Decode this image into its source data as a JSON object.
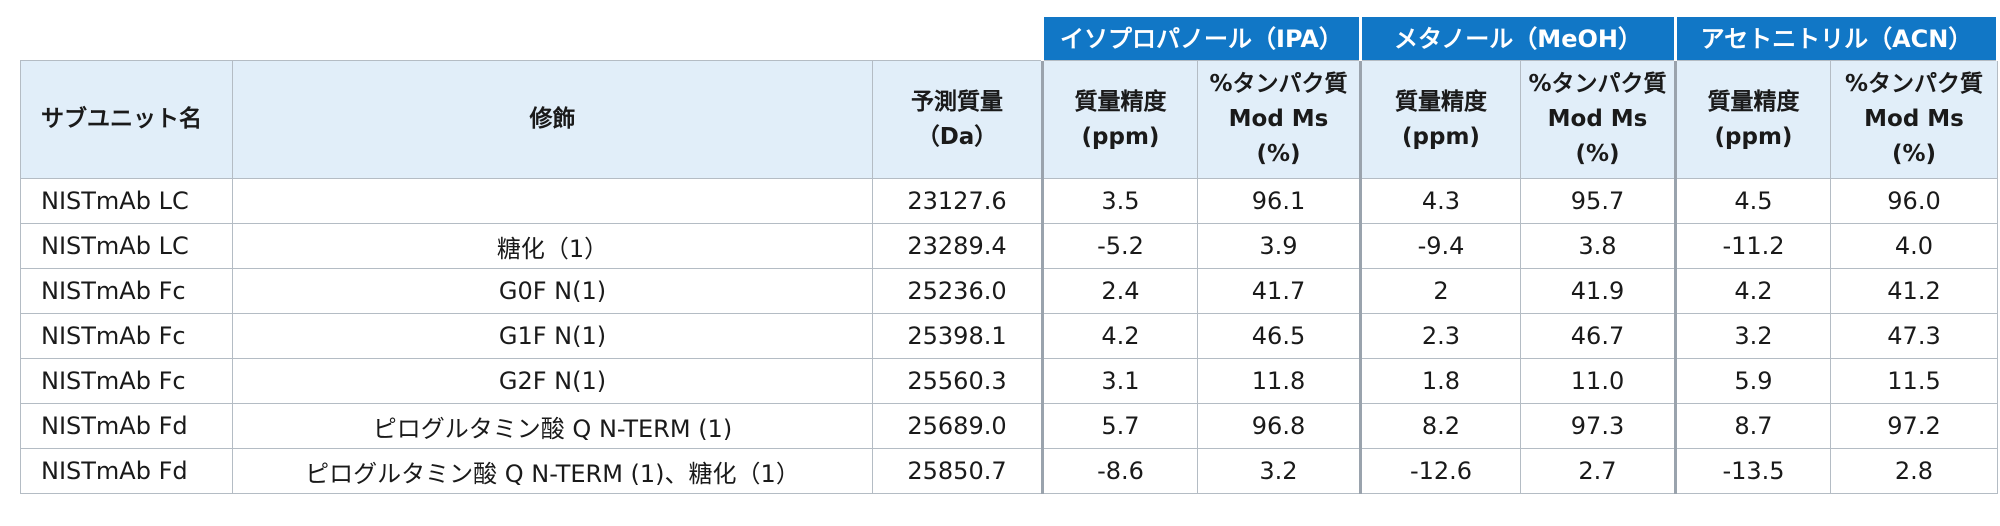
{
  "groups": {
    "ipa": "イソプロパノール（IPA）",
    "meoh": "メタノール（MeOH）",
    "acn": "アセトニトリル（ACN）"
  },
  "headers": {
    "subunit": "サブユニット名",
    "modification": "修飾",
    "mass_line1": "予測質量",
    "mass_line2": "（Da）",
    "accuracy_line1": "質量精度",
    "accuracy_line2": "(ppm)",
    "protein_line1": "%タンパク質",
    "protein_line2": "Mod Ms",
    "protein_line3": "(%)"
  },
  "rows": [
    {
      "subunit": "NISTmAb LC",
      "mod": "",
      "mass": "23127.6",
      "ipa_ppm": "3.5",
      "ipa_pct": "96.1",
      "meoh_ppm": "4.3",
      "meoh_pct": "95.7",
      "acn_ppm": "4.5",
      "acn_pct": "96.0"
    },
    {
      "subunit": "NISTmAb LC",
      "mod": "糖化（1）",
      "mass": "23289.4",
      "ipa_ppm": "-5.2",
      "ipa_pct": "3.9",
      "meoh_ppm": "-9.4",
      "meoh_pct": "3.8",
      "acn_ppm": "-11.2",
      "acn_pct": "4.0"
    },
    {
      "subunit": "NISTmAb Fc",
      "mod": "G0F N(1)",
      "mass": "25236.0",
      "ipa_ppm": "2.4",
      "ipa_pct": "41.7",
      "meoh_ppm": "2",
      "meoh_pct": "41.9",
      "acn_ppm": "4.2",
      "acn_pct": "41.2"
    },
    {
      "subunit": "NISTmAb Fc",
      "mod": "G1F N(1)",
      "mass": "25398.1",
      "ipa_ppm": "4.2",
      "ipa_pct": "46.5",
      "meoh_ppm": "2.3",
      "meoh_pct": "46.7",
      "acn_ppm": "3.2",
      "acn_pct": "47.3"
    },
    {
      "subunit": "NISTmAb Fc",
      "mod": "G2F N(1)",
      "mass": "25560.3",
      "ipa_ppm": "3.1",
      "ipa_pct": "11.8",
      "meoh_ppm": "1.8",
      "meoh_pct": "11.0",
      "acn_ppm": "5.9",
      "acn_pct": "11.5"
    },
    {
      "subunit": "NISTmAb Fd",
      "mod": "ピログルタミン酸 Q N-TERM (1)",
      "mass": "25689.0",
      "ipa_ppm": "5.7",
      "ipa_pct": "96.8",
      "meoh_ppm": "8.2",
      "meoh_pct": "97.3",
      "acn_ppm": "8.7",
      "acn_pct": "97.2"
    },
    {
      "subunit": "NISTmAb Fd",
      "mod": "ピログルタミン酸 Q N-TERM (1)、糖化（1）",
      "mass": "25850.7",
      "ipa_ppm": "-8.6",
      "ipa_pct": "3.2",
      "meoh_ppm": "-12.6",
      "meoh_pct": "2.7",
      "acn_ppm": "-13.5",
      "acn_pct": "2.8"
    }
  ]
}
